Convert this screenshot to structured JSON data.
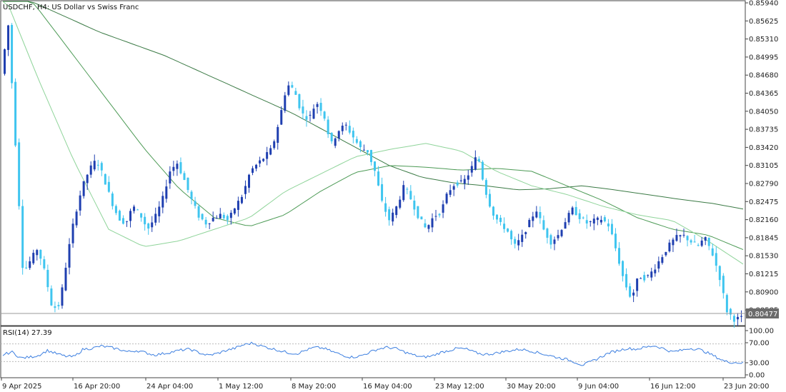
{
  "header": {
    "symbol_title": "USDCHF, H4:  US Dollar vs Swiss Franc"
  },
  "colors": {
    "bull": "#1f3fb0",
    "bear": "#3fc5ef",
    "ma_fast": "#8fd49a",
    "ma_mid": "#4c9a55",
    "ma_slow": "#3b7a45",
    "rsi": "#3b7ee0",
    "grid_frame": "#444444",
    "price_box_bg": "#6b6b6b"
  },
  "price_axis": {
    "labels": [
      "0.85940",
      "0.85625",
      "0.85310",
      "0.84995",
      "0.84680",
      "0.84365",
      "0.84050",
      "0.83735",
      "0.83420",
      "0.83105",
      "0.82790",
      "0.82475",
      "0.82160",
      "0.81845",
      "0.81530",
      "0.81215",
      "0.80900",
      "0.80585"
    ],
    "current_price": "0.80477"
  },
  "rsi_panel": {
    "label": "RSI(14) 27.39",
    "axis_labels": [
      "100.00",
      "70.00",
      "30.00",
      "0.00"
    ],
    "levels": [
      70,
      30
    ]
  },
  "time_axis": {
    "labels": [
      "9 Apr 2025",
      "16 Apr 20:00",
      "24 Apr 04:00",
      "1 May 12:00",
      "8 May 20:00",
      "16 May 04:00",
      "23 May 12:00",
      "30 May 20:00",
      "9 Jun 04:00",
      "16 Jun 12:00",
      "23 Jun 20:00"
    ]
  },
  "chart_data": {
    "type": "candlestick",
    "ylim": [
      0.8034,
      0.8594
    ],
    "price_anchors": [
      0.8468,
      0.8553,
      0.834,
      0.8125,
      0.8146,
      0.8168,
      0.8124,
      0.8063,
      0.807,
      0.815,
      0.822,
      0.827,
      0.8302,
      0.832,
      0.829,
      0.825,
      0.822,
      0.821,
      0.824,
      0.8225,
      0.82,
      0.822,
      0.825,
      0.83,
      0.8315,
      0.8285,
      0.825,
      0.8222,
      0.821,
      0.822,
      0.8225,
      0.8215,
      0.824,
      0.826,
      0.83,
      0.8313,
      0.8325,
      0.834,
      0.839,
      0.845,
      0.844,
      0.84,
      0.839,
      0.842,
      0.84,
      0.8345,
      0.837,
      0.838,
      0.836,
      0.834,
      0.8335,
      0.83,
      0.8245,
      0.8215,
      0.824,
      0.8275,
      0.825,
      0.822,
      0.82,
      0.8222,
      0.823,
      0.8265,
      0.828,
      0.828,
      0.83,
      0.833,
      0.827,
      0.823,
      0.821,
      0.82,
      0.817,
      0.8185,
      0.821,
      0.8235,
      0.82,
      0.8178,
      0.819,
      0.8215,
      0.8235,
      0.822,
      0.821,
      0.8215,
      0.8218,
      0.8205,
      0.816,
      0.811,
      0.808,
      0.812,
      0.8115,
      0.813,
      0.815,
      0.817,
      0.8185,
      0.819,
      0.818,
      0.817,
      0.8185,
      0.816,
      0.812,
      0.806,
      0.8045,
      0.8047
    ],
    "ma_fast_anchors": [
      0.861,
      0.846,
      0.832,
      0.82,
      0.817,
      0.818,
      0.82,
      0.822,
      0.8265,
      0.8295,
      0.8325,
      0.8338,
      0.8348,
      0.8335,
      0.83,
      0.8275,
      0.826,
      0.824,
      0.8225,
      0.8215,
      0.818,
      0.814
    ],
    "ma_mid_anchors": [
      0.865,
      0.858,
      0.85,
      0.842,
      0.834,
      0.827,
      0.822,
      0.8205,
      0.8225,
      0.8265,
      0.8298,
      0.831,
      0.8307,
      0.8302,
      0.8305,
      0.83,
      0.8275,
      0.825,
      0.822,
      0.82,
      0.819,
      0.8165
    ],
    "ma_slow_anchors": [
      0.861,
      0.859,
      0.8565,
      0.854,
      0.852,
      0.85,
      0.8475,
      0.845,
      0.8425,
      0.84,
      0.837,
      0.834,
      0.831,
      0.829,
      0.828,
      0.8275,
      0.8268,
      0.827,
      0.8275,
      0.8268,
      0.826,
      0.8252,
      0.8245,
      0.8235
    ],
    "rsi_anchors": [
      45,
      52,
      38,
      40,
      44,
      55,
      48,
      42,
      41,
      58,
      60,
      65,
      62,
      58,
      52,
      55,
      50,
      45,
      48,
      52,
      56,
      58,
      50,
      44,
      48,
      55,
      60,
      68,
      72,
      65,
      60,
      55,
      50,
      48,
      56,
      62,
      60,
      52,
      45,
      40,
      42,
      50,
      58,
      62,
      60,
      52,
      45,
      40,
      42,
      50,
      55,
      60,
      58,
      50,
      46,
      48,
      52,
      55,
      58,
      55,
      50,
      45,
      40,
      36,
      30,
      22,
      30,
      40,
      50,
      55,
      60,
      58,
      62,
      66,
      60,
      52,
      55,
      60,
      58,
      50,
      40,
      30,
      28,
      27
    ]
  }
}
